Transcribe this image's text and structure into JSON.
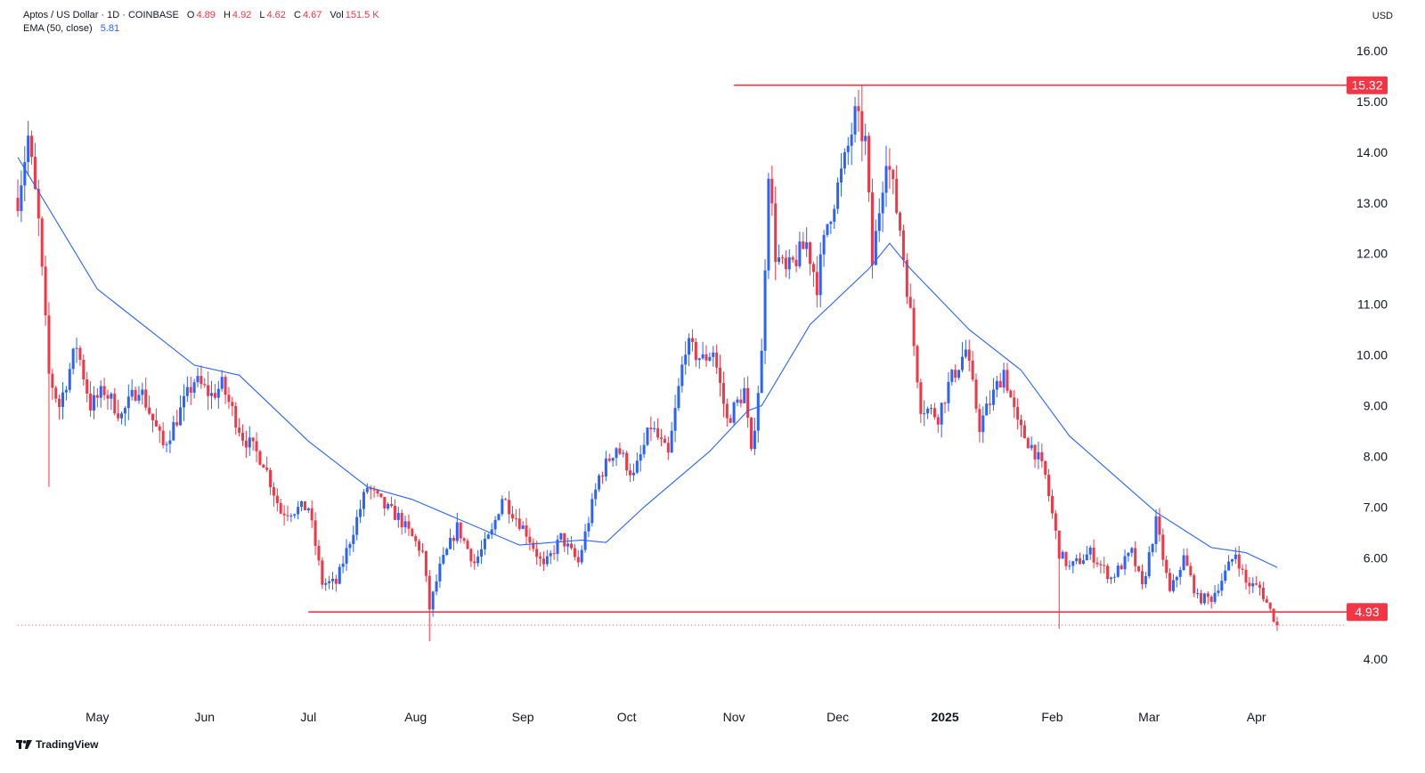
{
  "header": {
    "symbol": "Aptos / US Dollar · 1D · COINBASE",
    "o_label": "O",
    "o_value": "4.89",
    "h_label": "H",
    "h_value": "4.92",
    "l_label": "L",
    "l_value": "4.62",
    "c_label": "C",
    "c_value": "4.67",
    "vol_label": "Vol",
    "vol_value": "151.5 K",
    "ema_label": "EMA (50, close)",
    "ema_value": "5.81"
  },
  "currency": "USD",
  "branding": {
    "name": "TradingView"
  },
  "colors": {
    "up": "#2962ff",
    "down": "#f23645",
    "ema": "#2962ff",
    "level": "#f23645",
    "grid": "#f0f3fa"
  },
  "chart_data": {
    "type": "candlestick",
    "title": "Aptos / US Dollar · 1D · COINBASE",
    "ylim": [
      3.3,
      16.65
    ],
    "yticks": [
      "4.00",
      "5.00",
      "6.00",
      "7.00",
      "8.00",
      "9.00",
      "10.00",
      "11.00",
      "12.00",
      "13.00",
      "14.00",
      "15.00",
      "16.00"
    ],
    "xticks": [
      {
        "label": "May",
        "date": "2024-05-01"
      },
      {
        "label": "Jun",
        "date": "2024-06-01"
      },
      {
        "label": "Jul",
        "date": "2024-07-01"
      },
      {
        "label": "Aug",
        "date": "2024-08-01"
      },
      {
        "label": "Sep",
        "date": "2024-09-01"
      },
      {
        "label": "Oct",
        "date": "2024-10-01"
      },
      {
        "label": "Nov",
        "date": "2024-11-01"
      },
      {
        "label": "Dec",
        "date": "2024-12-01"
      },
      {
        "label": "2025",
        "date": "2025-01-01",
        "bold": true
      },
      {
        "label": "Feb",
        "date": "2025-02-01"
      },
      {
        "label": "Mar",
        "date": "2025-03-01"
      },
      {
        "label": "Apr",
        "date": "2025-04-01"
      }
    ],
    "x_range": [
      "2024-04-08",
      "2025-04-24"
    ],
    "price_path": [
      [
        "2024-04-08",
        13.1
      ],
      [
        "2024-04-11",
        14.3
      ],
      [
        "2024-04-14",
        12.6
      ],
      [
        "2024-04-17",
        9.6
      ],
      [
        "2024-04-20",
        9.0
      ],
      [
        "2024-04-25",
        10.2
      ],
      [
        "2024-04-29",
        9.0
      ],
      [
        "2024-05-03",
        9.3
      ],
      [
        "2024-05-08",
        8.8
      ],
      [
        "2024-05-13",
        9.4
      ],
      [
        "2024-05-20",
        8.2
      ],
      [
        "2024-05-23",
        8.6
      ],
      [
        "2024-05-29",
        9.5
      ],
      [
        "2024-06-03",
        9.2
      ],
      [
        "2024-06-06",
        9.4
      ],
      [
        "2024-06-12",
        8.4
      ],
      [
        "2024-06-18",
        7.9
      ],
      [
        "2024-06-23",
        6.9
      ],
      [
        "2024-07-01",
        7.0
      ],
      [
        "2024-07-05",
        5.5
      ],
      [
        "2024-07-09",
        5.5
      ],
      [
        "2024-07-18",
        7.4
      ],
      [
        "2024-07-23",
        7.0
      ],
      [
        "2024-07-27",
        6.8
      ],
      [
        "2024-08-03",
        6.1
      ],
      [
        "2024-08-05",
        5.0
      ],
      [
        "2024-08-08",
        5.8
      ],
      [
        "2024-08-13",
        6.6
      ],
      [
        "2024-08-18",
        5.9
      ],
      [
        "2024-08-23",
        6.5
      ],
      [
        "2024-08-26",
        7.2
      ],
      [
        "2024-09-02",
        6.5
      ],
      [
        "2024-09-07",
        5.8
      ],
      [
        "2024-09-12",
        6.4
      ],
      [
        "2024-09-17",
        5.9
      ],
      [
        "2024-09-23",
        7.6
      ],
      [
        "2024-09-28",
        8.2
      ],
      [
        "2024-10-03",
        7.6
      ],
      [
        "2024-10-08",
        8.6
      ],
      [
        "2024-10-13",
        8.0
      ],
      [
        "2024-10-18",
        10.2
      ],
      [
        "2024-10-23",
        9.9
      ],
      [
        "2024-10-26",
        10.1
      ],
      [
        "2024-10-30",
        8.7
      ],
      [
        "2024-11-04",
        9.3
      ],
      [
        "2024-11-06",
        8.0
      ],
      [
        "2024-11-09",
        10.0
      ],
      [
        "2024-11-11",
        13.7
      ],
      [
        "2024-11-13",
        12.0
      ],
      [
        "2024-11-16",
        11.6
      ],
      [
        "2024-11-22",
        12.2
      ],
      [
        "2024-11-25",
        11.4
      ],
      [
        "2024-11-28",
        12.6
      ],
      [
        "2024-12-03",
        13.8
      ],
      [
        "2024-12-06",
        14.7
      ],
      [
        "2024-12-09",
        14.2
      ],
      [
        "2024-12-11",
        11.8
      ],
      [
        "2024-12-15",
        14.0
      ],
      [
        "2024-12-19",
        12.5
      ],
      [
        "2024-12-22",
        10.8
      ],
      [
        "2024-12-25",
        9.0
      ],
      [
        "2024-12-30",
        8.8
      ],
      [
        "2025-01-02",
        9.4
      ],
      [
        "2025-01-07",
        10.1
      ],
      [
        "2025-01-11",
        8.6
      ],
      [
        "2025-01-18",
        9.7
      ],
      [
        "2025-01-22",
        8.6
      ],
      [
        "2025-01-27",
        8.1
      ],
      [
        "2025-01-30",
        7.6
      ],
      [
        "2025-02-03",
        6.1
      ],
      [
        "2025-02-06",
        5.8
      ],
      [
        "2025-02-12",
        6.1
      ],
      [
        "2025-02-18",
        5.6
      ],
      [
        "2025-02-24",
        6.1
      ],
      [
        "2025-02-27",
        5.4
      ],
      [
        "2025-03-03",
        6.7
      ],
      [
        "2025-03-07",
        5.3
      ],
      [
        "2025-03-11",
        6.0
      ],
      [
        "2025-03-15",
        5.2
      ],
      [
        "2025-03-19",
        5.2
      ],
      [
        "2025-03-23",
        5.7
      ],
      [
        "2025-03-26",
        6.1
      ],
      [
        "2025-03-29",
        5.5
      ],
      [
        "2025-04-02",
        5.4
      ],
      [
        "2025-04-07",
        4.67
      ]
    ],
    "ema_path": [
      [
        "2024-04-08",
        13.9
      ],
      [
        "2024-05-01",
        11.3
      ],
      [
        "2024-05-29",
        9.8
      ],
      [
        "2024-06-11",
        9.6
      ],
      [
        "2024-07-01",
        8.3
      ],
      [
        "2024-07-18",
        7.4
      ],
      [
        "2024-07-31",
        7.15
      ],
      [
        "2024-08-31",
        6.25
      ],
      [
        "2024-09-18",
        6.35
      ],
      [
        "2024-09-25",
        6.3
      ],
      [
        "2024-10-06",
        7.0
      ],
      [
        "2024-10-25",
        8.1
      ],
      [
        "2024-11-05",
        8.9
      ],
      [
        "2024-11-09",
        9.0
      ],
      [
        "2024-11-23",
        10.6
      ],
      [
        "2024-12-10",
        11.7
      ],
      [
        "2024-12-16",
        12.2
      ],
      [
        "2024-12-22",
        11.7
      ],
      [
        "2025-01-08",
        10.5
      ],
      [
        "2025-01-23",
        9.7
      ],
      [
        "2025-02-06",
        8.4
      ],
      [
        "2025-03-03",
        6.9
      ],
      [
        "2025-03-19",
        6.2
      ],
      [
        "2025-03-29",
        6.1
      ],
      [
        "2025-04-07",
        5.81
      ]
    ],
    "series": [
      {
        "name": "EMA (50, close)",
        "type": "line",
        "last": 5.81
      },
      {
        "name": "Aptos / US Dollar",
        "type": "candles",
        "last_close": 4.67
      }
    ],
    "levels": [
      {
        "value": 15.32,
        "label": "15.32",
        "from": "2024-11-01",
        "style": "solid"
      },
      {
        "value": 4.93,
        "label": "4.93",
        "from": "2024-07-01",
        "style": "solid"
      },
      {
        "value": 4.67,
        "from": "2024-04-08",
        "style": "dotted"
      }
    ],
    "grid": false,
    "legend": "top-left"
  }
}
